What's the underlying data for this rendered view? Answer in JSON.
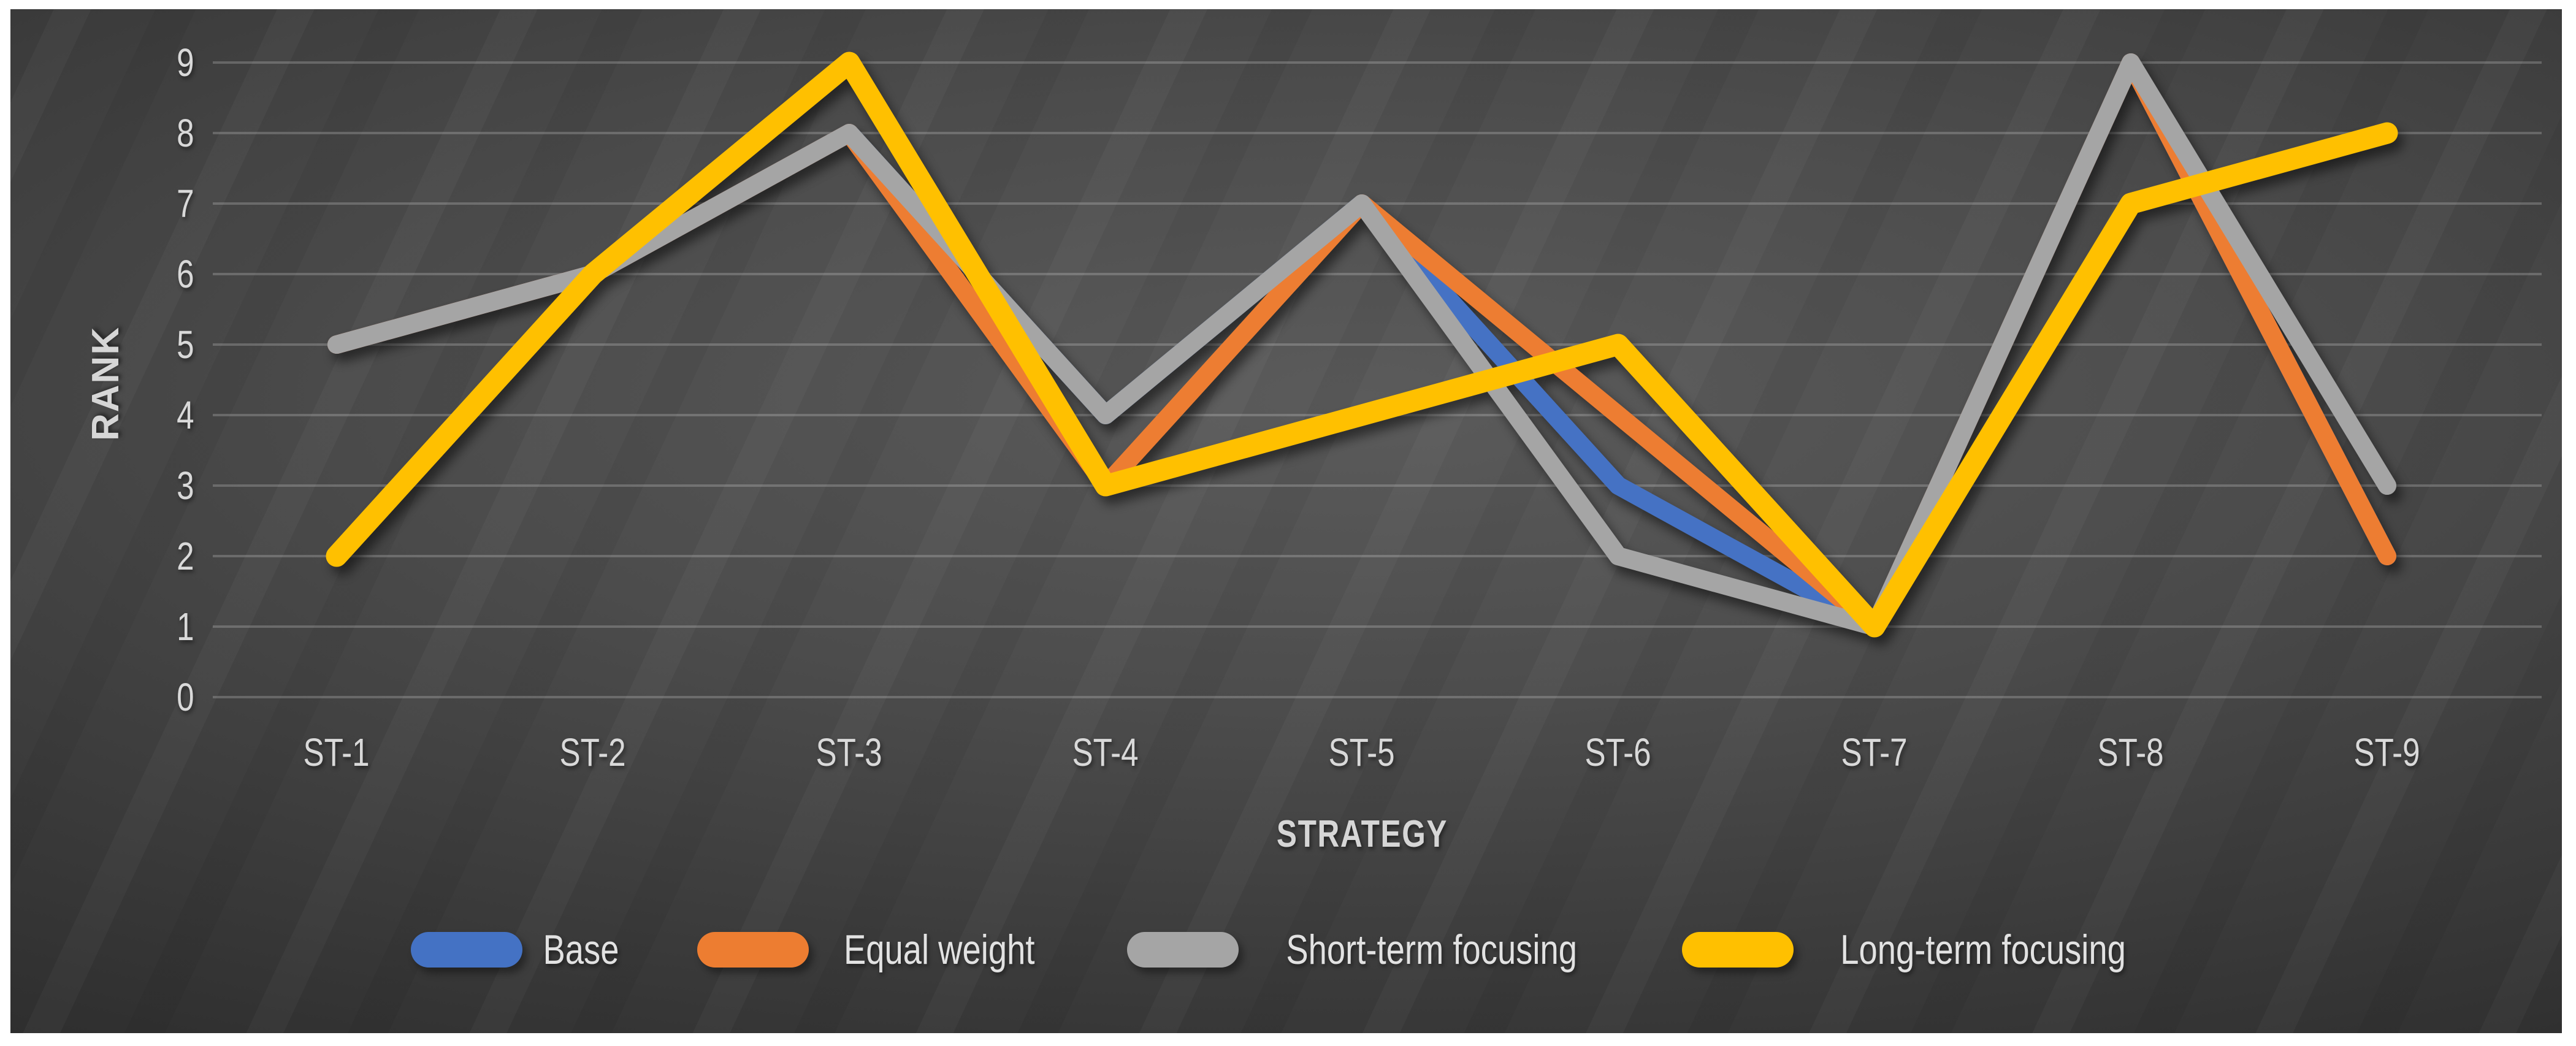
{
  "chart_data": {
    "type": "line",
    "title": "",
    "xlabel": "STRATEGY",
    "ylabel": "RANK",
    "categories": [
      "ST-1",
      "ST-2",
      "ST-3",
      "ST-4",
      "ST-5",
      "ST-6",
      "ST-7",
      "ST-8",
      "ST-9"
    ],
    "y_ticks": [
      9,
      8,
      7,
      6,
      5,
      4,
      3,
      2,
      1,
      0
    ],
    "ylim": [
      0,
      9
    ],
    "grid": true,
    "legend_position": "bottom",
    "series": [
      {
        "name": "Base",
        "color": "#4472C4",
        "values": [
          5,
          6,
          8,
          4,
          7,
          3,
          1,
          9,
          2
        ]
      },
      {
        "name": "Equal weight",
        "color": "#ED7D31",
        "values": [
          5,
          6,
          8,
          3,
          7,
          4,
          1,
          9,
          2
        ]
      },
      {
        "name": "Short-term focusing",
        "color": "#A5A5A5",
        "values": [
          5,
          6,
          8,
          4,
          7,
          2,
          1,
          9,
          3
        ]
      },
      {
        "name": "Long-term focusing",
        "color": "#FFC000",
        "values": [
          2,
          6,
          9,
          3,
          4,
          5,
          1,
          7,
          8
        ]
      }
    ],
    "gridline_color": "rgba(255,255,255,0.20)",
    "background_style": "dark-gradient-slide"
  }
}
